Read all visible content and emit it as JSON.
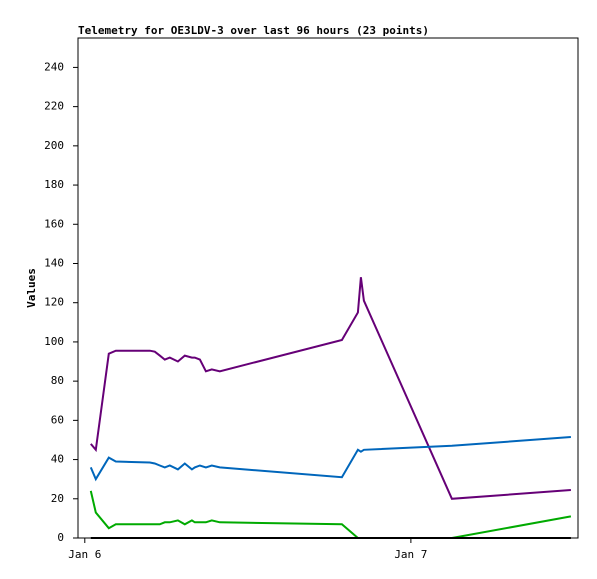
{
  "chart_data": {
    "type": "line",
    "title": "Telemetry for OE3LDV-3 over last 96 hours (23 points)",
    "y_label": "Values",
    "x": [
      0.44,
      0.81,
      1.77,
      2.28,
      4.79,
      5.15,
      5.52,
      5.89,
      6.26,
      6.85,
      7.36,
      7.88,
      8.1,
      8.47,
      8.91,
      9.35,
      9.94,
      18.92,
      20.1,
      20.32,
      20.54,
      27.02,
      35.78
    ],
    "xlim": [
      -0.5,
      36.3
    ],
    "xticks": [
      {
        "value": 0,
        "label": "Jan 6"
      },
      {
        "value": 24,
        "label": "Jan 7"
      }
    ],
    "ylim": [
      0,
      255
    ],
    "yticks": [
      0,
      20,
      40,
      60,
      80,
      100,
      120,
      140,
      160,
      180,
      200,
      220,
      240
    ],
    "series": [
      {
        "color": "#660077",
        "values": [
          48,
          45,
          94,
          95.5,
          95.5,
          95,
          93,
          91,
          92,
          90,
          93,
          92,
          92,
          91,
          85,
          86,
          85,
          101,
          115,
          133,
          121,
          20,
          24.5
        ]
      },
      {
        "color": "#0066bb",
        "values": [
          36,
          30,
          41,
          39,
          38.5,
          38,
          37,
          36,
          37,
          35,
          38,
          35,
          36,
          37,
          36,
          37,
          36,
          31,
          45,
          44,
          45,
          47,
          51.5
        ]
      },
      {
        "color": "#00aa00",
        "values": [
          24,
          13,
          5,
          7,
          7,
          7,
          7,
          8,
          8,
          9,
          7,
          9,
          8,
          8,
          8,
          9,
          8,
          7,
          0,
          0,
          0,
          0,
          11
        ]
      },
      {
        "color": "#000000",
        "values": [
          0,
          0,
          0,
          0,
          0,
          0,
          0,
          0,
          0,
          0,
          0,
          0,
          0,
          0,
          0,
          0,
          0,
          0,
          0,
          0,
          0,
          0,
          0
        ]
      }
    ]
  }
}
